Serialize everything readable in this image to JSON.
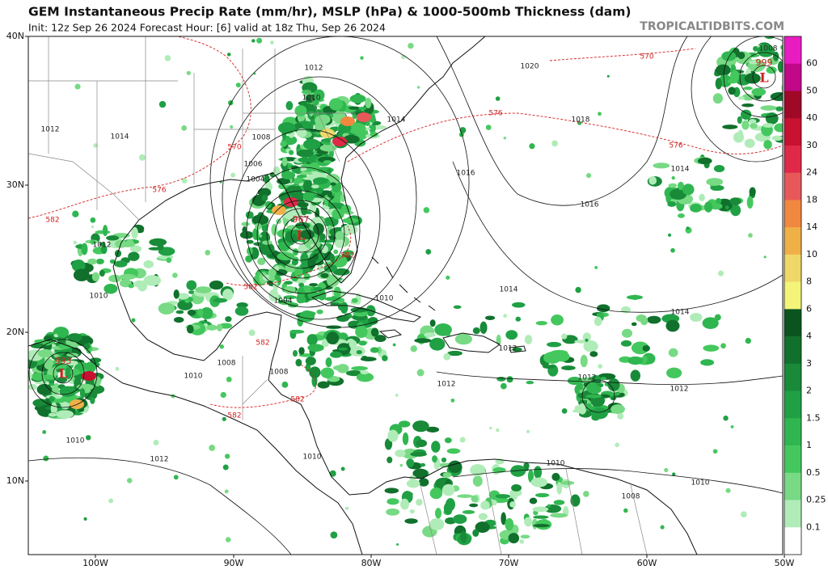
{
  "header": {
    "title": "GEM Instantaneous Precip Rate (mm/hr), MSLP (hPa) & 1000-500mb Thickness (dam)",
    "subtitle": "Init: 12z Sep 26 2024   Forecast Hour: [6]   valid at 18z Thu, Sep 26 2024",
    "site": "TROPICALTIDBITS.COM"
  },
  "axes": {
    "lat_labels": [
      "40N",
      "30N",
      "20N",
      "10N"
    ],
    "lon_labels": [
      "100W",
      "90W",
      "80W",
      "70W",
      "60W",
      "50W"
    ]
  },
  "colorbar": {
    "labels": [
      "60",
      "50",
      "40",
      "30",
      "24",
      "18",
      "14",
      "10",
      "8",
      "6",
      "4",
      "3",
      "2",
      "1.5",
      "1",
      "0.5",
      "0.25",
      "0.1"
    ],
    "colors": [
      "#e81cc0",
      "#c00888",
      "#a00828",
      "#c81030",
      "#e02848",
      "#e85858",
      "#f08840",
      "#f0b048",
      "#f0d868",
      "#f4f478",
      "#0a5420",
      "#10702c",
      "#188a38",
      "#20a044",
      "#30b650",
      "#44c85e",
      "#78da84",
      "#b0ecb8",
      "#ffffff"
    ]
  },
  "isobar_labels": [
    "1012",
    "1010",
    "1014",
    "1008",
    "1006",
    "1004",
    "1012",
    "1014",
    "1012",
    "1010",
    "1004",
    "1010",
    "1020",
    "1018",
    "1016",
    "1016",
    "1014",
    "1014",
    "1014",
    "1012",
    "1012",
    "1012",
    "1012",
    "1008",
    "1010",
    "1008",
    "1010",
    "1012",
    "1010",
    "1010",
    "1010",
    "1008",
    "1008"
  ],
  "thickness_labels": [
    "570",
    "576",
    "570",
    "576",
    "582",
    "576",
    "582",
    "582",
    "582",
    "582",
    "582"
  ],
  "lows": [
    {
      "pressure": "967",
      "symbol": "L"
    },
    {
      "pressure": "999",
      "symbol": "L"
    },
    {
      "pressure": "993",
      "symbol": "L"
    }
  ]
}
